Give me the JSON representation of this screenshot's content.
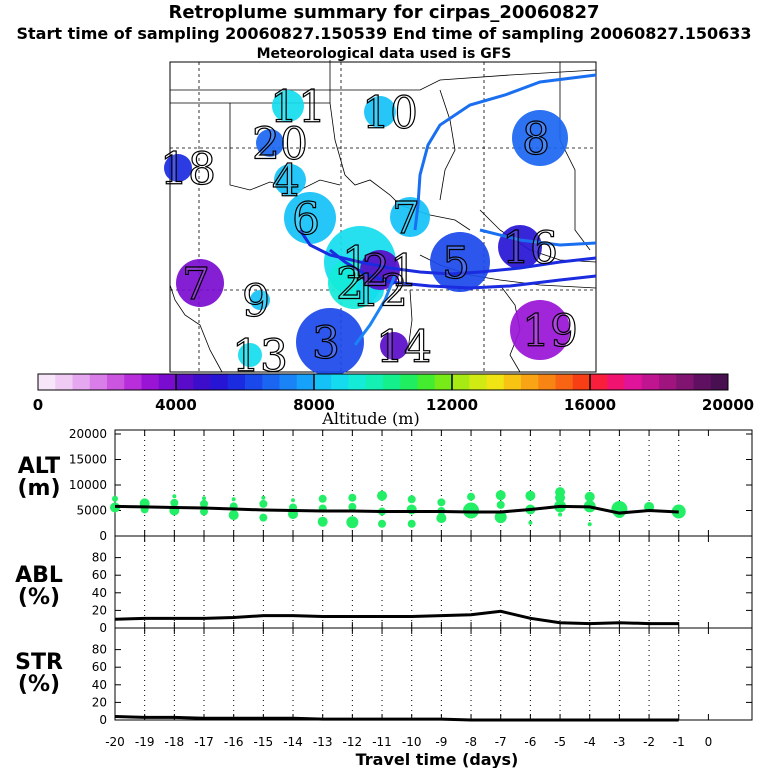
{
  "header": {
    "title": "Retroplume summary for cirpas_20060827",
    "sampling_line": "Start time of sampling 20060827.150539     End time of sampling 20060827.150633",
    "met_line": "Meteorological data used is GFS"
  },
  "colors": {
    "alt_marker": "#22ee66",
    "trajectory": "#1a6ff0",
    "line": "#000000"
  },
  "colorbar": {
    "label": "Altitude (m)",
    "ticks": [
      "0",
      "4000",
      "8000",
      "12000",
      "16000",
      "20000"
    ],
    "min": 0,
    "max": 20000,
    "colors": [
      "#f7e6fa",
      "#f0ccf5",
      "#e5a8f0",
      "#d97de8",
      "#cc55e0",
      "#b82edb",
      "#9a14d6",
      "#7a0ccf",
      "#5a0bc9",
      "#3d0dcc",
      "#2715d6",
      "#1a2be0",
      "#1a48ea",
      "#1a66f2",
      "#1a84f7",
      "#16a2fa",
      "#14c2f7",
      "#14dcee",
      "#14ecd8",
      "#14f0b4",
      "#14f08c",
      "#20ee60",
      "#44ec30",
      "#78ea18",
      "#a8ea14",
      "#d2ea14",
      "#f0e414",
      "#f8c414",
      "#f8a414",
      "#f88414",
      "#f86414",
      "#f83e14",
      "#f81e3c",
      "#f01470",
      "#e0149a",
      "#c01490",
      "#a01480",
      "#801470",
      "#601060",
      "#481050"
    ]
  },
  "map": {
    "clusters": [
      {
        "label": "1",
        "colorIndex": 17
      },
      {
        "label": "2",
        "colorIndex": 18
      },
      {
        "label": "3",
        "colorIndex": 12
      },
      {
        "label": "4",
        "colorIndex": 16
      },
      {
        "label": "5",
        "colorIndex": 12
      },
      {
        "label": "6",
        "colorIndex": 16
      },
      {
        "label": "7",
        "colorIndex": 16
      },
      {
        "label": "7",
        "colorIndex": 7
      },
      {
        "label": "8",
        "colorIndex": 13
      },
      {
        "label": "9",
        "colorIndex": 16
      },
      {
        "label": "10",
        "colorIndex": 16
      },
      {
        "label": "11",
        "colorIndex": 17
      },
      {
        "label": "12",
        "colorIndex": 17
      },
      {
        "label": "13",
        "colorIndex": 17
      },
      {
        "label": "14",
        "colorIndex": 8
      },
      {
        "label": "16",
        "colorIndex": 10
      },
      {
        "label": "18",
        "colorIndex": 11
      },
      {
        "label": "19",
        "colorIndex": 6
      },
      {
        "label": "20",
        "colorIndex": 13
      },
      {
        "label": "21",
        "colorIndex": 8
      }
    ]
  },
  "chart_data": [
    {
      "type": "scatter",
      "panel": "ALT",
      "ylabel": "ALT (m)",
      "ylim": [
        0,
        20000
      ],
      "yticks": [
        "0",
        "5000",
        "10000",
        "15000",
        "20000"
      ],
      "line": {
        "x": [
          -20,
          -19,
          -18,
          -17,
          -16,
          -15,
          -14,
          -13,
          -12,
          -11,
          -10,
          -9,
          -8,
          -7,
          -6,
          -5,
          -4,
          -3,
          -2,
          -1
        ],
        "y": [
          5800,
          5700,
          5600,
          5500,
          5300,
          5100,
          5000,
          4900,
          4900,
          4800,
          4800,
          4800,
          4700,
          4700,
          5200,
          5800,
          5700,
          4500,
          5000,
          4700
        ]
      },
      "points": [
        {
          "x": -20,
          "y": 7300,
          "r": 3
        },
        {
          "x": -20,
          "y": 5600,
          "r": 5
        },
        {
          "x": -19,
          "y": 6400,
          "r": 5
        },
        {
          "x": -19,
          "y": 5200,
          "r": 4
        },
        {
          "x": -18,
          "y": 7800,
          "r": 2
        },
        {
          "x": -18,
          "y": 6500,
          "r": 4
        },
        {
          "x": -18,
          "y": 5000,
          "r": 5
        },
        {
          "x": -17,
          "y": 7400,
          "r": 2
        },
        {
          "x": -17,
          "y": 6300,
          "r": 4
        },
        {
          "x": -17,
          "y": 4800,
          "r": 4
        },
        {
          "x": -16,
          "y": 7200,
          "r": 2
        },
        {
          "x": -16,
          "y": 5800,
          "r": 4
        },
        {
          "x": -16,
          "y": 4100,
          "r": 5
        },
        {
          "x": -15,
          "y": 7500,
          "r": 2
        },
        {
          "x": -15,
          "y": 6300,
          "r": 4
        },
        {
          "x": -15,
          "y": 3600,
          "r": 4
        },
        {
          "x": -14,
          "y": 7000,
          "r": 2
        },
        {
          "x": -14,
          "y": 5600,
          "r": 4
        },
        {
          "x": -14,
          "y": 4300,
          "r": 5
        },
        {
          "x": -13,
          "y": 7300,
          "r": 4
        },
        {
          "x": -13,
          "y": 5400,
          "r": 4
        },
        {
          "x": -13,
          "y": 2800,
          "r": 5
        },
        {
          "x": -12,
          "y": 7500,
          "r": 4
        },
        {
          "x": -12,
          "y": 5700,
          "r": 4
        },
        {
          "x": -12,
          "y": 2700,
          "r": 6
        },
        {
          "x": -11,
          "y": 7900,
          "r": 5
        },
        {
          "x": -11,
          "y": 4800,
          "r": 4
        },
        {
          "x": -11,
          "y": 2400,
          "r": 4
        },
        {
          "x": -10,
          "y": 7200,
          "r": 4
        },
        {
          "x": -10,
          "y": 5200,
          "r": 5
        },
        {
          "x": -10,
          "y": 2400,
          "r": 4
        },
        {
          "x": -9,
          "y": 6600,
          "r": 4
        },
        {
          "x": -9,
          "y": 4900,
          "r": 4
        },
        {
          "x": -9,
          "y": 3500,
          "r": 5
        },
        {
          "x": -8,
          "y": 7700,
          "r": 4
        },
        {
          "x": -8,
          "y": 5000,
          "r": 8
        },
        {
          "x": -7,
          "y": 8000,
          "r": 5
        },
        {
          "x": -7,
          "y": 6100,
          "r": 4
        },
        {
          "x": -7,
          "y": 3700,
          "r": 6
        },
        {
          "x": -6,
          "y": 7900,
          "r": 5
        },
        {
          "x": -6,
          "y": 5200,
          "r": 5
        },
        {
          "x": -6,
          "y": 2600,
          "r": 2
        },
        {
          "x": -5,
          "y": 8600,
          "r": 5
        },
        {
          "x": -5,
          "y": 7500,
          "r": 5
        },
        {
          "x": -5,
          "y": 5800,
          "r": 6
        },
        {
          "x": -5,
          "y": 4200,
          "r": 2
        },
        {
          "x": -4,
          "y": 7700,
          "r": 5
        },
        {
          "x": -4,
          "y": 5800,
          "r": 6
        },
        {
          "x": -4,
          "y": 2300,
          "r": 2
        },
        {
          "x": -3,
          "y": 5300,
          "r": 8
        },
        {
          "x": -3,
          "y": 4700,
          "r": 6
        },
        {
          "x": -2,
          "y": 5700,
          "r": 5
        },
        {
          "x": -1,
          "y": 4800,
          "r": 7
        }
      ]
    },
    {
      "type": "line",
      "panel": "ABL",
      "ylabel": "ABL (%)",
      "ylim": [
        0,
        100
      ],
      "yticks": [
        "0",
        "20",
        "40",
        "60",
        "80"
      ],
      "x": [
        -20,
        -19,
        -18,
        -17,
        -16,
        -15,
        -14,
        -13,
        -12,
        -11,
        -10,
        -9,
        -8,
        -7,
        -6,
        -5,
        -4,
        -3,
        -2,
        -1
      ],
      "y": [
        10,
        11,
        11,
        11,
        12,
        14,
        14,
        13,
        13,
        13,
        13,
        14,
        15,
        19,
        11,
        6,
        5,
        6,
        5,
        5
      ]
    },
    {
      "type": "line",
      "panel": "STR",
      "ylabel": "STR (%)",
      "ylim": [
        0,
        100
      ],
      "yticks": [
        "0",
        "20",
        "40",
        "60",
        "80"
      ],
      "xlabel": "Travel time (days)",
      "xticks": [
        "-20",
        "-19",
        "-18",
        "-17",
        "-16",
        "-15",
        "-14",
        "-13",
        "-12",
        "-11",
        "-10",
        "-9",
        "-8",
        "-7",
        "-6",
        "-5",
        "-4",
        "-3",
        "-2",
        "-1",
        "0"
      ],
      "x": [
        -20,
        -19,
        -18,
        -17,
        -16,
        -15,
        -14,
        -13,
        -12,
        -11,
        -10,
        -9,
        -8,
        -7,
        -6,
        -5,
        -4,
        -3,
        -2,
        -1
      ],
      "y": [
        4,
        3,
        3,
        2,
        2,
        2,
        2,
        1,
        1,
        1,
        1,
        1,
        0,
        0,
        0,
        0,
        0,
        0,
        0,
        0
      ]
    }
  ],
  "panel_labels": {
    "alt_top": "ALT",
    "alt_bot": "(m)",
    "abl_top": "ABL",
    "abl_bot": "(%)",
    "str_top": "STR",
    "str_bot": "(%)"
  }
}
